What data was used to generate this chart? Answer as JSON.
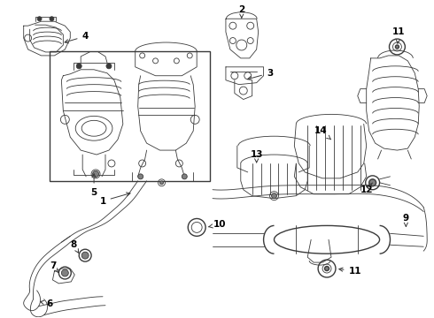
{
  "bg_color": "#ffffff",
  "line_color": "#3a3a3a",
  "text_color": "#000000",
  "fig_w": 4.9,
  "fig_h": 3.6,
  "dpi": 100,
  "lw_thin": 0.6,
  "lw_med": 1.0,
  "lw_thick": 1.4,
  "label_fs": 7.5
}
